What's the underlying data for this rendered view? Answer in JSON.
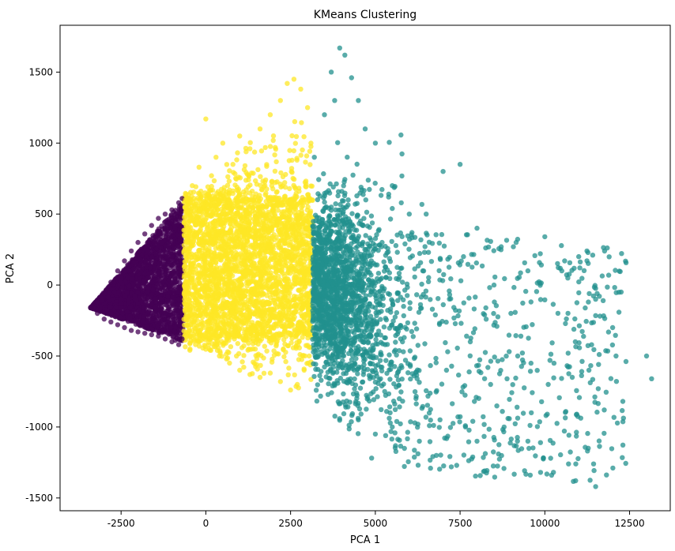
{
  "chart_data": {
    "type": "scatter",
    "title": "KMeans Clustering",
    "xlabel": "PCA 1",
    "ylabel": "PCA 2",
    "xlim": [
      -4300,
      13700
    ],
    "ylim": [
      -1590,
      1830
    ],
    "xticks": [
      -2500,
      0,
      2500,
      5000,
      7500,
      10000,
      12500
    ],
    "yticks": [
      -1500,
      -1000,
      -500,
      0,
      500,
      1000,
      1500
    ],
    "grid": false,
    "legend": "none",
    "clusters": [
      {
        "color": "#440154",
        "x_range": [
          -3400,
          -650
        ],
        "y_range": [
          -430,
          620
        ],
        "description_points": [
          [
            -3400,
            -160
          ],
          [
            -3200,
            -120
          ],
          [
            -3000,
            -60
          ],
          [
            -2800,
            20
          ],
          [
            -2600,
            100
          ],
          [
            -2400,
            170
          ],
          [
            -2200,
            240
          ],
          [
            -2000,
            300
          ],
          [
            -1800,
            360
          ],
          [
            -1600,
            420
          ],
          [
            -1400,
            470
          ],
          [
            -1200,
            500
          ],
          [
            -1000,
            530
          ],
          [
            -800,
            580
          ],
          [
            -700,
            610
          ],
          [
            -3200,
            -200
          ],
          [
            -3000,
            -240
          ],
          [
            -2800,
            -260
          ],
          [
            -2600,
            -280
          ],
          [
            -2400,
            -300
          ],
          [
            -2200,
            -320
          ],
          [
            -2000,
            -330
          ],
          [
            -1800,
            -340
          ],
          [
            -1600,
            -350
          ],
          [
            -1400,
            -360
          ],
          [
            -1200,
            -380
          ],
          [
            -1000,
            -400
          ],
          [
            -800,
            -420
          ],
          [
            -700,
            -380
          ],
          [
            -900,
            -390
          ],
          [
            -2000,
            0
          ],
          [
            -1500,
            100
          ],
          [
            -1000,
            200
          ],
          [
            -800,
            -100
          ],
          [
            -1200,
            -200
          ],
          [
            -2500,
            -100
          ],
          [
            -1700,
            -250
          ],
          [
            -900,
            400
          ],
          [
            -1300,
            300
          ],
          [
            -2300,
            50
          ]
        ]
      },
      {
        "color": "#fde725",
        "x_range": [
          -650,
          3150
        ],
        "y_range": [
          -800,
          1460
        ],
        "description_points": [
          [
            -600,
            600
          ],
          [
            -400,
            700
          ],
          [
            -200,
            830
          ],
          [
            0,
            1170
          ],
          [
            300,
            900
          ],
          [
            500,
            1000
          ],
          [
            800,
            850
          ],
          [
            1000,
            1050
          ],
          [
            1300,
            960
          ],
          [
            1600,
            1100
          ],
          [
            1900,
            1200
          ],
          [
            2200,
            1300
          ],
          [
            2400,
            1420
          ],
          [
            2600,
            1450
          ],
          [
            2800,
            1380
          ],
          [
            3000,
            1250
          ],
          [
            3100,
            1000
          ],
          [
            -500,
            -300
          ],
          [
            -200,
            -400
          ],
          [
            100,
            -450
          ],
          [
            400,
            -500
          ],
          [
            700,
            -550
          ],
          [
            1000,
            -600
          ],
          [
            1300,
            -630
          ],
          [
            1600,
            -650
          ],
          [
            1900,
            -620
          ],
          [
            2200,
            -680
          ],
          [
            2500,
            -740
          ],
          [
            2700,
            -700
          ],
          [
            2900,
            -600
          ],
          [
            3050,
            -500
          ],
          [
            500,
            200
          ],
          [
            1500,
            0
          ],
          [
            2500,
            300
          ],
          [
            1000,
            -200
          ],
          [
            2000,
            -300
          ],
          [
            0,
            0
          ],
          [
            3000,
            100
          ],
          [
            1200,
            500
          ],
          [
            2800,
            -200
          ]
        ]
      },
      {
        "color": "#21908d",
        "x_range": [
          3150,
          13150
        ],
        "y_range": [
          -1420,
          1680
        ],
        "description_points": [
          [
            3200,
            900
          ],
          [
            3500,
            1200
          ],
          [
            3700,
            1500
          ],
          [
            3800,
            1300
          ],
          [
            3950,
            1670
          ],
          [
            4100,
            1620
          ],
          [
            4300,
            1460
          ],
          [
            4500,
            1300
          ],
          [
            4700,
            1100
          ],
          [
            5000,
            1000
          ],
          [
            5500,
            700
          ],
          [
            6000,
            500
          ],
          [
            6500,
            500
          ],
          [
            7000,
            800
          ],
          [
            7500,
            850
          ],
          [
            8000,
            400
          ],
          [
            8500,
            0
          ],
          [
            9000,
            -200
          ],
          [
            9500,
            100
          ],
          [
            10000,
            340
          ],
          [
            10500,
            100
          ],
          [
            11000,
            200
          ],
          [
            11500,
            -100
          ],
          [
            12000,
            -300
          ],
          [
            13000,
            -500
          ],
          [
            13150,
            -660
          ],
          [
            12300,
            -820
          ],
          [
            11500,
            -1420
          ],
          [
            10700,
            -1260
          ],
          [
            10200,
            -1340
          ],
          [
            9500,
            -1100
          ],
          [
            8800,
            -1000
          ],
          [
            8000,
            -1100
          ],
          [
            7400,
            -1270
          ],
          [
            6800,
            -1200
          ],
          [
            6300,
            -1100
          ],
          [
            5500,
            -1000
          ],
          [
            5000,
            -1050
          ],
          [
            4500,
            -950
          ],
          [
            3800,
            -700
          ],
          [
            3400,
            -300
          ],
          [
            3600,
            0
          ],
          [
            4000,
            200
          ],
          [
            4500,
            -200
          ],
          [
            5200,
            300
          ],
          [
            5800,
            -400
          ],
          [
            6400,
            100
          ],
          [
            7100,
            -600
          ],
          [
            7800,
            -400
          ],
          [
            8400,
            -700
          ],
          [
            9200,
            -500
          ],
          [
            10100,
            -700
          ],
          [
            10900,
            -400
          ],
          [
            11300,
            -600
          ],
          [
            12100,
            -500
          ],
          [
            4200,
            600
          ],
          [
            4800,
            -500
          ],
          [
            6200,
            -800
          ],
          [
            7600,
            200
          ],
          [
            9600,
            -900
          ]
        ]
      }
    ]
  }
}
